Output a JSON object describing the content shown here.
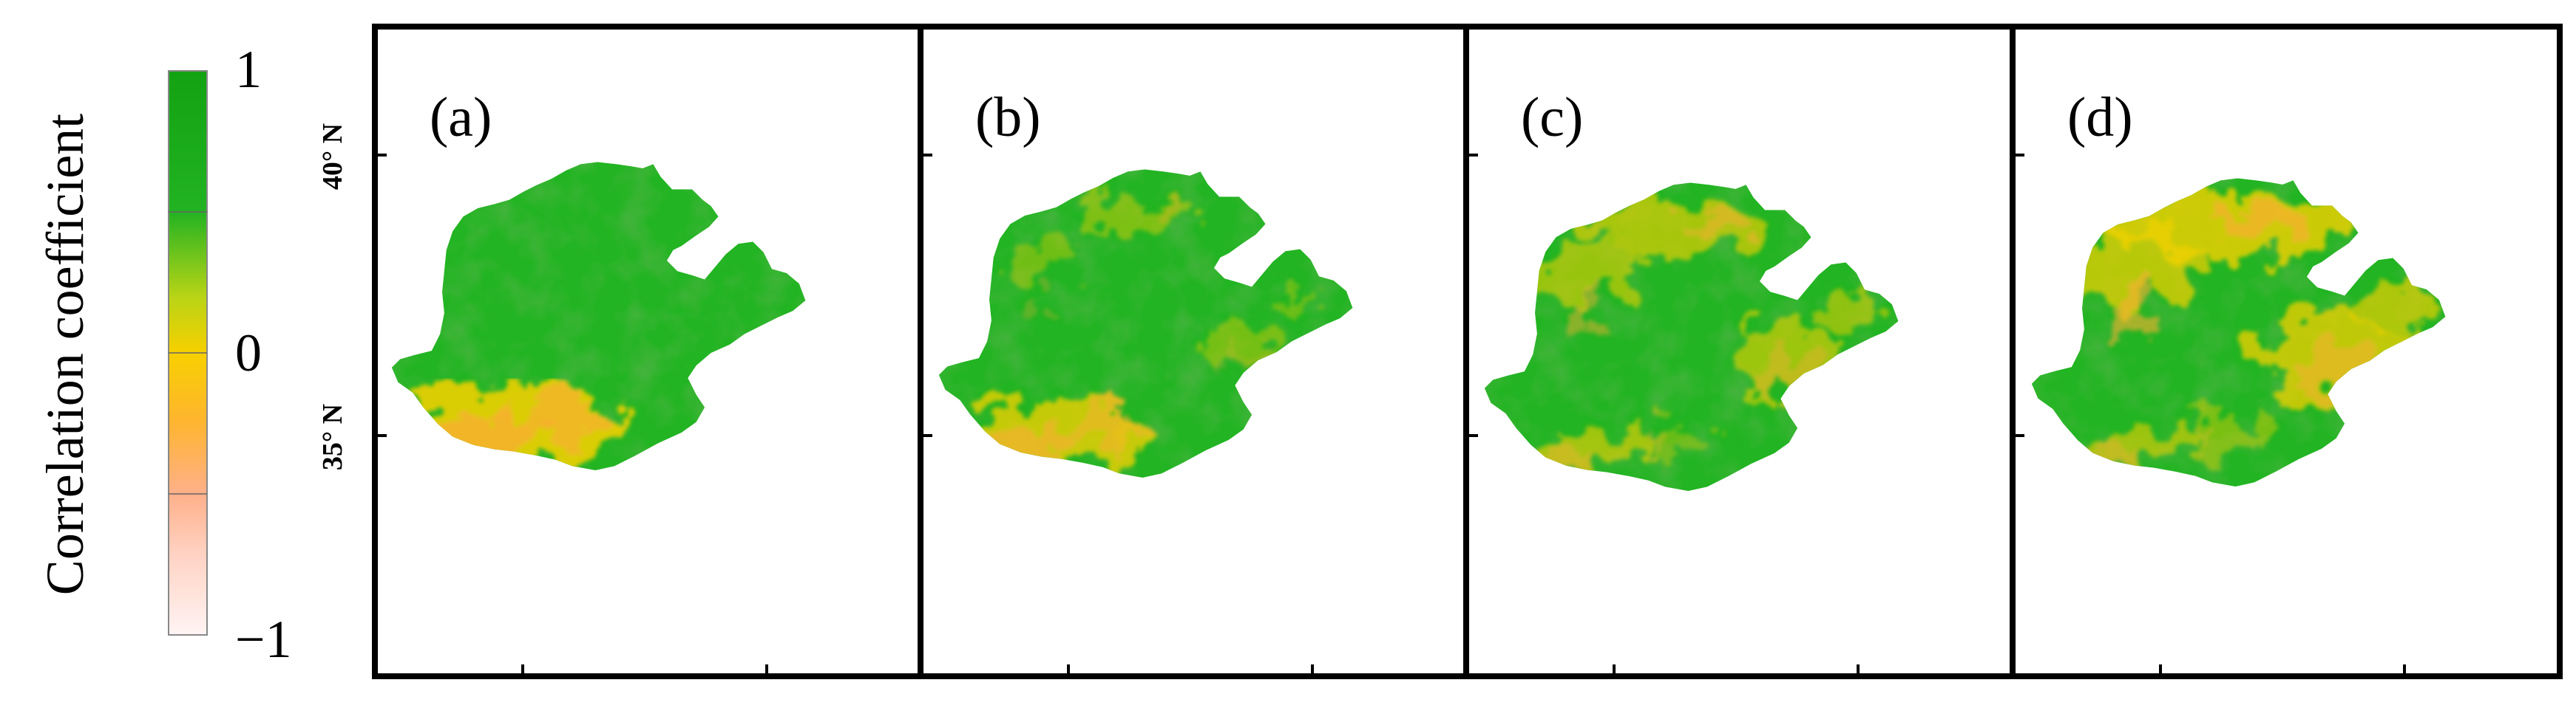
{
  "colorbar": {
    "label": "Correlation coefficient",
    "ticks": [
      "1",
      "0",
      "−1"
    ],
    "tick_values": [
      1,
      0,
      -1
    ],
    "range": [
      -1,
      1
    ],
    "colors": [
      "#fff3f3",
      "#ffc6b0",
      "#ffb02a",
      "#f6d200",
      "#b9d614",
      "#5bc42a",
      "#1cb41c",
      "#0ea010"
    ]
  },
  "axes": {
    "lat_labels": [
      "40° N",
      "35° N"
    ],
    "lat_values": [
      40,
      35
    ]
  },
  "panels": [
    {
      "label": "(a)",
      "south_coverage": 0.85,
      "north_coverage": 0.0,
      "east_coverage": 0.0
    },
    {
      "label": "(b)",
      "south_coverage": 0.6,
      "north_coverage": 0.15,
      "east_coverage": 0.1
    },
    {
      "label": "(c)",
      "south_coverage": 0.15,
      "north_coverage": 0.55,
      "east_coverage": 0.45
    },
    {
      "label": "(d)",
      "south_coverage": 0.1,
      "north_coverage": 0.85,
      "east_coverage": 0.75
    }
  ]
}
